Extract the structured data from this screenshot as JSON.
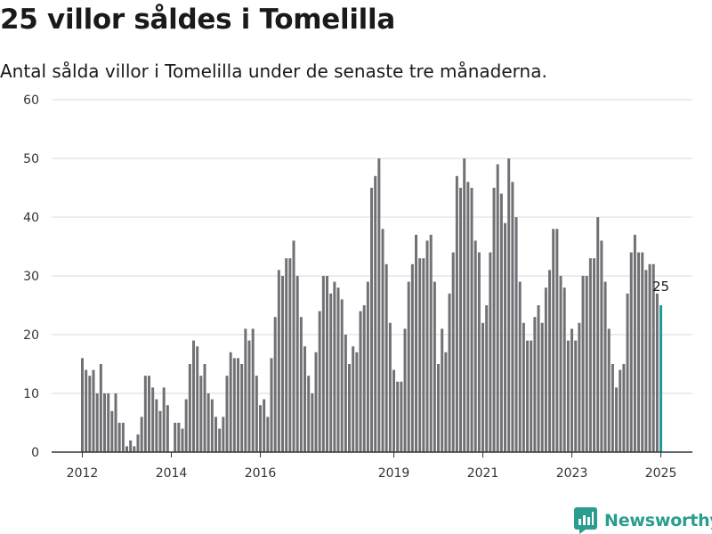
{
  "title": "25 villor såldes i Tomelilla",
  "subtitle": "Antal sålda villor i Tomelilla under de senaste tre månaderna.",
  "brand": {
    "name": "Newsworthy",
    "logo_icon": "newsworthy-chart-icon",
    "color": "#2a9d8f"
  },
  "colors": {
    "bar": "#717075",
    "highlight": "#1f9a96",
    "grid": "#d9d9d9",
    "axis": "#333333"
  },
  "chart_data": {
    "type": "bar",
    "start": "2012-01",
    "x_ticks": [
      "2012",
      "2014",
      "2016",
      "2019",
      "2021",
      "2023",
      "2025"
    ],
    "y_ticks": [
      0,
      10,
      20,
      30,
      40,
      50,
      60
    ],
    "ylim": [
      0,
      60
    ],
    "grid": true,
    "highlight_last": true,
    "last_label": "25",
    "values": [
      16,
      14,
      13,
      14,
      10,
      15,
      10,
      10,
      7,
      10,
      5,
      5,
      1,
      2,
      1,
      3,
      6,
      13,
      13,
      11,
      9,
      7,
      11,
      8,
      0,
      5,
      5,
      4,
      9,
      15,
      19,
      18,
      13,
      15,
      10,
      9,
      6,
      4,
      6,
      13,
      17,
      16,
      16,
      15,
      21,
      19,
      21,
      13,
      8,
      9,
      6,
      16,
      23,
      31,
      30,
      33,
      33,
      36,
      30,
      23,
      18,
      13,
      10,
      17,
      24,
      30,
      30,
      27,
      29,
      28,
      26,
      20,
      15,
      18,
      17,
      24,
      25,
      29,
      45,
      47,
      50,
      38,
      32,
      22,
      14,
      12,
      12,
      21,
      29,
      32,
      37,
      33,
      33,
      36,
      37,
      29,
      15,
      21,
      17,
      27,
      34,
      47,
      45,
      50,
      46,
      45,
      36,
      34,
      22,
      25,
      34,
      45,
      49,
      44,
      39,
      50,
      46,
      40,
      29,
      22,
      19,
      19,
      23,
      25,
      22,
      28,
      31,
      38,
      38,
      30,
      28,
      19,
      21,
      19,
      22,
      30,
      30,
      33,
      33,
      40,
      36,
      29,
      21,
      15,
      11,
      14,
      15,
      27,
      34,
      37,
      34,
      34,
      31,
      32,
      32,
      27,
      25
    ]
  }
}
